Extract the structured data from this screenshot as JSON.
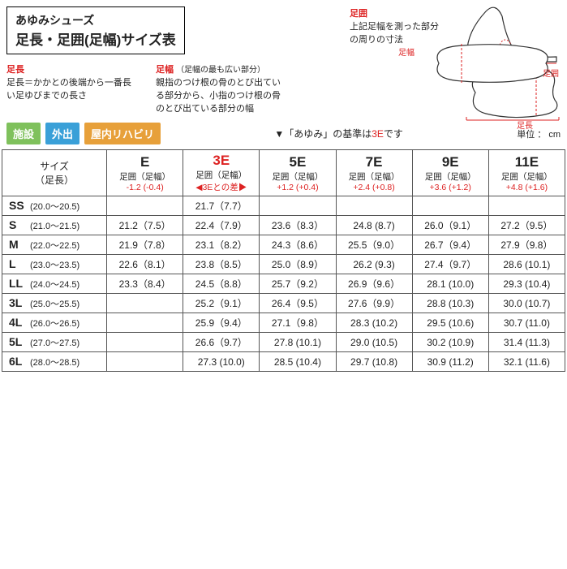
{
  "title": {
    "brand": "あゆみシューズ",
    "main": "足長・足囲(足幅)サイズ表"
  },
  "defs": {
    "sokuchou": {
      "title": "足長",
      "desc": "足長＝かかとの後端から一番長い足ゆびまでの長さ"
    },
    "sokuhaba": {
      "title": "足幅",
      "sub": "（足幅の最も広い部分）",
      "desc": "親指のつけ根の骨のとび出ている部分から、小指のつけ根の骨のとび出ている部分の幅"
    },
    "ashii": {
      "title": "足囲",
      "desc": "上記足幅を測った部分の周りの寸法"
    }
  },
  "diagram_labels": {
    "sokuhaba": "足幅",
    "ashii": "足囲",
    "sokuchou": "足長"
  },
  "badges": [
    "施設",
    "外出",
    "屋内リハビリ"
  ],
  "note_prefix": "▼「あゆみ」の基準は",
  "note_em": "3E",
  "note_suffix": "です",
  "unit": "単位 ： cm",
  "table": {
    "size_header": {
      "l1": "サイズ",
      "l2": "（足長）"
    },
    "columns": [
      {
        "code": "E",
        "sub": "足囲（足幅）",
        "diff": "-1.2 (-0.4)",
        "highlight": false
      },
      {
        "code": "3E",
        "sub": "足囲（足幅）",
        "diff": "◀3Eとの差▶",
        "highlight": true
      },
      {
        "code": "5E",
        "sub": "足囲（足幅）",
        "diff": "+1.2 (+0.4)",
        "highlight": false
      },
      {
        "code": "7E",
        "sub": "足囲（足幅）",
        "diff": "+2.4 (+0.8)",
        "highlight": false
      },
      {
        "code": "9E",
        "sub": "足囲（足幅）",
        "diff": "+3.6 (+1.2)",
        "highlight": false
      },
      {
        "code": "11E",
        "sub": "足囲（足幅）",
        "diff": "+4.8 (+1.6)",
        "highlight": false
      }
    ],
    "rows": [
      {
        "code": "SS",
        "range": "(20.0～20.5)",
        "cells": [
          "",
          "21.7（7.7）",
          "",
          "",
          "",
          ""
        ]
      },
      {
        "code": "S",
        "range": "(21.0～21.5)",
        "cells": [
          "21.2（7.5）",
          "22.4（7.9）",
          "23.6（8.3）",
          "24.8 (8.7)",
          "26.0（9.1）",
          "27.2（9.5）"
        ]
      },
      {
        "code": "M",
        "range": "(22.0～22.5)",
        "cells": [
          "21.9（7.8）",
          "23.1（8.2）",
          "24.3（8.6）",
          "25.5（9.0）",
          "26.7（9.4）",
          "27.9（9.8）"
        ]
      },
      {
        "code": "L",
        "range": "(23.0～23.5)",
        "cells": [
          "22.6（8.1）",
          "23.8（8.5）",
          "25.0（8.9）",
          "26.2 (9.3)",
          "27.4（9.7）",
          "28.6 (10.1)"
        ]
      },
      {
        "code": "LL",
        "range": "(24.0～24.5)",
        "cells": [
          "23.3（8.4）",
          "24.5（8.8）",
          "25.7（9.2）",
          "26.9（9.6）",
          "28.1 (10.0)",
          "29.3 (10.4)"
        ]
      },
      {
        "code": "3L",
        "range": "(25.0～25.5)",
        "cells": [
          "",
          "25.2（9.1）",
          "26.4（9.5）",
          "27.6（9.9）",
          "28.8 (10.3)",
          "30.0 (10.7)"
        ]
      },
      {
        "code": "4L",
        "range": "(26.0～26.5)",
        "cells": [
          "",
          "25.9（9.4）",
          "27.1（9.8）",
          "28.3 (10.2)",
          "29.5 (10.6)",
          "30.7 (11.0)"
        ]
      },
      {
        "code": "5L",
        "range": "(27.0～27.5)",
        "cells": [
          "",
          "26.6（9.7）",
          "27.8 (10.1)",
          "29.0 (10.5)",
          "30.2 (10.9)",
          "31.4 (11.3)"
        ]
      },
      {
        "code": "6L",
        "range": "(28.0～28.5)",
        "cells": [
          "",
          "27.3 (10.0)",
          "28.5 (10.4)",
          "29.7 (10.8)",
          "30.9 (11.2)",
          "32.1 (11.6)"
        ]
      }
    ]
  },
  "styling": {
    "badge_colors": [
      "#7fc15c",
      "#3aa0d8",
      "#e7a03a"
    ],
    "accent": "#d22",
    "border": "#555",
    "bg": "#ffffff"
  }
}
